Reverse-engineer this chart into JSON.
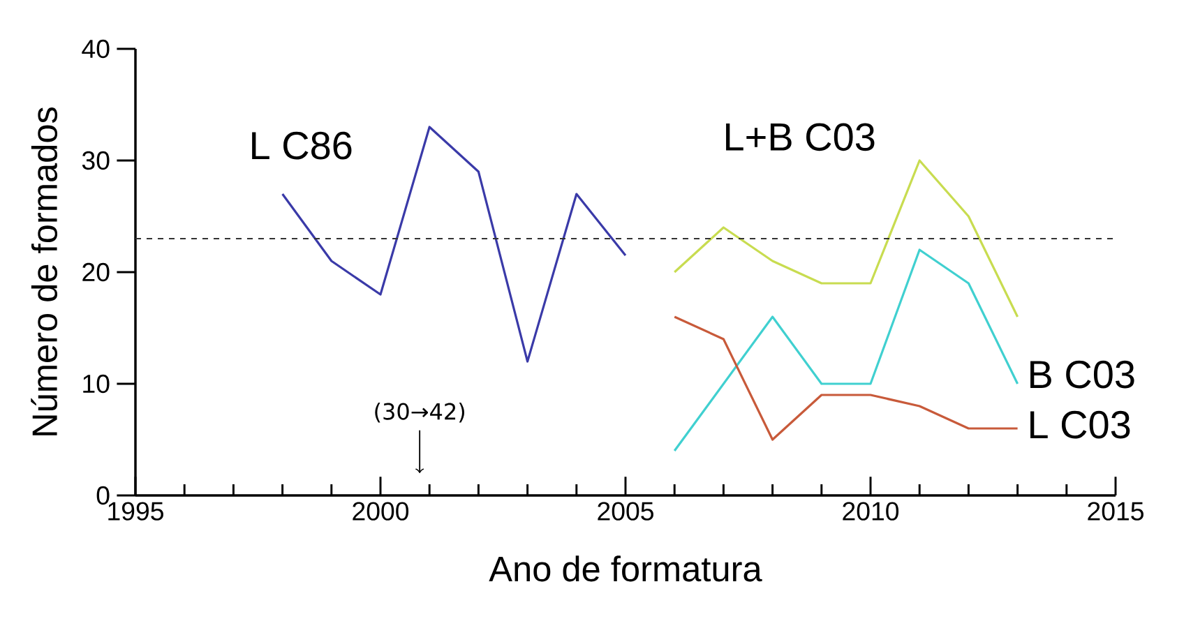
{
  "chart_data": {
    "type": "line",
    "xlabel": "Ano de formatura",
    "ylabel": "Número de formados",
    "xlim": [
      1995,
      2015
    ],
    "xticks": [
      1995,
      2000,
      2005,
      2010,
      2015
    ],
    "ylim": [
      0,
      40
    ],
    "yticks": [
      0,
      10,
      20,
      30,
      40
    ],
    "grid": false,
    "marker": "none",
    "line_style": "solid",
    "series": [
      {
        "name": "L C86",
        "color": "#3a3aa8",
        "x": [
          1998,
          1999,
          2000,
          2001,
          2002,
          2003,
          2004,
          2005
        ],
        "values": [
          27,
          21,
          18,
          33,
          29,
          12,
          27,
          21.5
        ]
      },
      {
        "name": "L+B C03",
        "color": "#c8dc50",
        "x": [
          2006,
          2007,
          2008,
          2009,
          2010,
          2011,
          2012,
          2013
        ],
        "values": [
          20,
          24,
          21,
          19,
          19,
          30,
          25,
          16
        ]
      },
      {
        "name": "B C03",
        "color": "#40d0d0",
        "x": [
          2006,
          2007,
          2008,
          2009,
          2010,
          2011,
          2012,
          2013
        ],
        "values": [
          4,
          10,
          16,
          10,
          10,
          22,
          19,
          10
        ]
      },
      {
        "name": "L C03",
        "color": "#c85a3a",
        "x": [
          2006,
          2007,
          2008,
          2009,
          2010,
          2011,
          2012,
          2013
        ],
        "values": [
          16,
          14,
          5,
          9,
          9,
          8,
          6,
          6
        ]
      }
    ],
    "ref_lines": [
      {
        "axis": "y",
        "value": 23,
        "label": null,
        "color": "#333333",
        "line_style": "dashed"
      }
    ],
    "annotations": [
      {
        "text": "(30→42)",
        "x": 2000.8,
        "y": 2
      }
    ]
  }
}
